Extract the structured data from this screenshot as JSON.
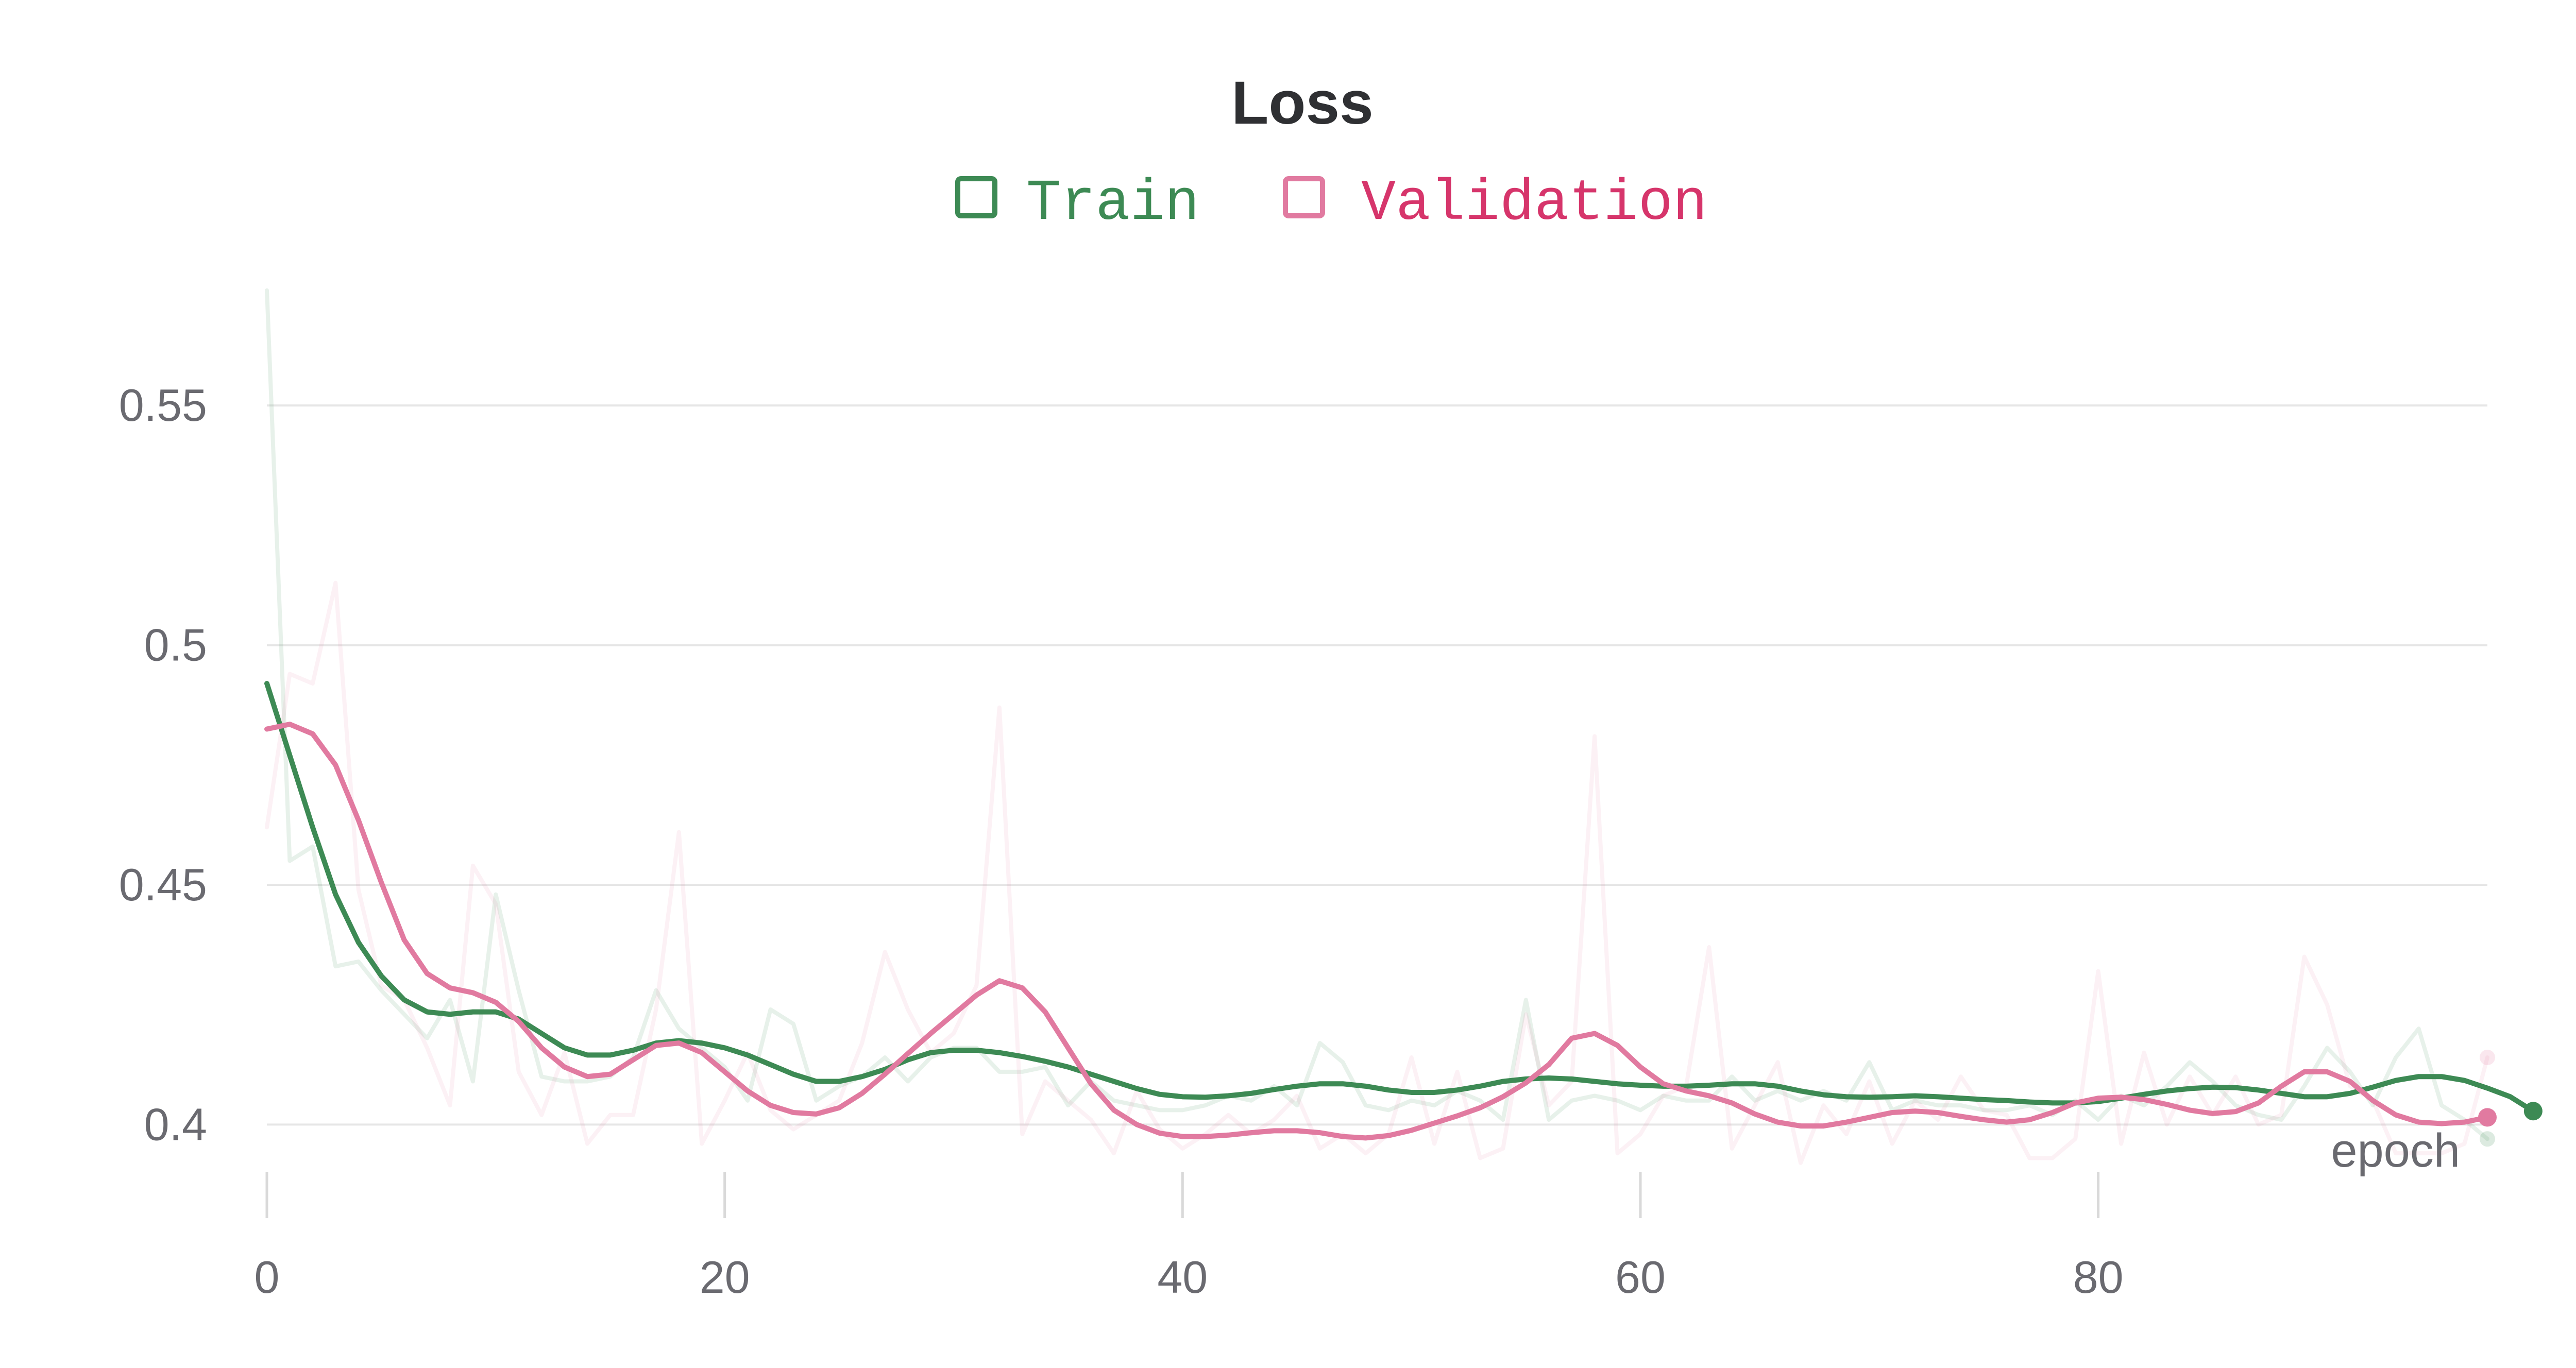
{
  "chart_data": {
    "type": "line",
    "title": "Loss",
    "xlabel": "epoch",
    "ylabel": "",
    "xlim": [
      0,
      97
    ],
    "ylim": [
      0.388,
      0.58
    ],
    "x_ticks": [
      0,
      20,
      40,
      60,
      80
    ],
    "y_ticks": [
      0.4,
      0.45,
      0.5,
      0.55
    ],
    "x_tick_labels": [
      "0",
      "20",
      "40",
      "60",
      "80"
    ],
    "y_tick_labels": [
      "0.4",
      "0.45",
      "0.5",
      "0.55"
    ],
    "grid": true,
    "legend_position": "top-center",
    "colors": {
      "train": "#3d8a54",
      "validation": "#e17aa0",
      "validation_text": "#d6356b",
      "grid": "#e6e6e6",
      "tick": "#6a6a70",
      "title": "#2f3033"
    },
    "series": [
      {
        "name": "Train",
        "key": "train",
        "raw": [
          0.574,
          0.455,
          0.458,
          0.433,
          0.434,
          0.428,
          0.423,
          0.418,
          0.426,
          0.409,
          0.448,
          0.428,
          0.41,
          0.409,
          0.409,
          0.41,
          0.414,
          0.428,
          0.42,
          0.416,
          0.412,
          0.405,
          0.424,
          0.421,
          0.405,
          0.408,
          0.41,
          0.414,
          0.409,
          0.414,
          0.416,
          0.416,
          0.411,
          0.411,
          0.412,
          0.404,
          0.409,
          0.405,
          0.404,
          0.403,
          0.403,
          0.404,
          0.406,
          0.405,
          0.408,
          0.404,
          0.417,
          0.413,
          0.404,
          0.403,
          0.405,
          0.404,
          0.407,
          0.405,
          0.401,
          0.426,
          0.401,
          0.405,
          0.406,
          0.405,
          0.403,
          0.406,
          0.405,
          0.405,
          0.41,
          0.405,
          0.407,
          0.405,
          0.407,
          0.405,
          0.413,
          0.403,
          0.405,
          0.404,
          0.404,
          0.403,
          0.403,
          0.404,
          0.402,
          0.405,
          0.401,
          0.406,
          0.404,
          0.408,
          0.413,
          0.409,
          0.404,
          0.402,
          0.401,
          0.408,
          0.416,
          0.411,
          0.404,
          0.414,
          0.42,
          0.404,
          0.401,
          0.397
        ],
        "smoothed": [
          0.492,
          0.477,
          0.462,
          0.448,
          0.438,
          0.431,
          0.426,
          0.4235,
          0.423,
          0.4235,
          0.4235,
          0.422,
          0.419,
          0.416,
          0.4145,
          0.4145,
          0.4155,
          0.417,
          0.4175,
          0.417,
          0.416,
          0.4145,
          0.4125,
          0.4105,
          0.409,
          0.409,
          0.41,
          0.4115,
          0.4135,
          0.415,
          0.4155,
          0.4155,
          0.415,
          0.4142,
          0.4132,
          0.412,
          0.4105,
          0.409,
          0.4075,
          0.4063,
          0.4058,
          0.4057,
          0.406,
          0.4065,
          0.4073,
          0.408,
          0.4085,
          0.4085,
          0.408,
          0.4072,
          0.4067,
          0.4067,
          0.4072,
          0.408,
          0.409,
          0.4095,
          0.4097,
          0.4095,
          0.409,
          0.4085,
          0.4082,
          0.408,
          0.408,
          0.4082,
          0.4085,
          0.4085,
          0.408,
          0.407,
          0.4062,
          0.4058,
          0.4057,
          0.4058,
          0.406,
          0.4058,
          0.4055,
          0.4052,
          0.405,
          0.4047,
          0.4045,
          0.4045,
          0.4048,
          0.4055,
          0.4063,
          0.407,
          0.4075,
          0.4078,
          0.4077,
          0.4072,
          0.4065,
          0.4058,
          0.4058,
          0.4065,
          0.4078,
          0.4092,
          0.41,
          0.41,
          0.4092,
          0.4076,
          0.4058,
          0.4028
        ]
      },
      {
        "name": "Validation",
        "key": "validation",
        "raw": [
          0.462,
          0.494,
          0.492,
          0.513,
          0.449,
          0.429,
          0.426,
          0.416,
          0.404,
          0.454,
          0.446,
          0.411,
          0.402,
          0.415,
          0.396,
          0.402,
          0.402,
          0.424,
          0.461,
          0.396,
          0.405,
          0.415,
          0.403,
          0.399,
          0.402,
          0.405,
          0.417,
          0.436,
          0.424,
          0.415,
          0.419,
          0.429,
          0.487,
          0.398,
          0.409,
          0.405,
          0.401,
          0.394,
          0.407,
          0.399,
          0.395,
          0.398,
          0.402,
          0.398,
          0.401,
          0.406,
          0.395,
          0.398,
          0.394,
          0.398,
          0.414,
          0.396,
          0.411,
          0.393,
          0.395,
          0.423,
          0.404,
          0.409,
          0.481,
          0.394,
          0.398,
          0.406,
          0.408,
          0.437,
          0.395,
          0.404,
          0.413,
          0.392,
          0.404,
          0.398,
          0.409,
          0.396,
          0.405,
          0.401,
          0.41,
          0.403,
          0.402,
          0.393,
          0.393,
          0.397,
          0.432,
          0.396,
          0.415,
          0.4,
          0.41,
          0.402,
          0.41,
          0.4,
          0.402,
          0.435,
          0.425,
          0.408,
          0.405,
          0.394,
          0.394,
          0.394,
          0.396,
          0.414
        ],
        "smoothed": [
          0.4825,
          0.4835,
          0.4815,
          0.475,
          0.4635,
          0.4505,
          0.4385,
          0.4315,
          0.4285,
          0.4275,
          0.4255,
          0.4215,
          0.416,
          0.412,
          0.41,
          0.4105,
          0.4135,
          0.4165,
          0.417,
          0.415,
          0.411,
          0.407,
          0.404,
          0.4025,
          0.4022,
          0.4035,
          0.4065,
          0.4105,
          0.4148,
          0.419,
          0.423,
          0.427,
          0.43,
          0.4285,
          0.4235,
          0.416,
          0.4085,
          0.403,
          0.4,
          0.3982,
          0.3975,
          0.3975,
          0.3978,
          0.3983,
          0.3987,
          0.3987,
          0.3983,
          0.3975,
          0.3972,
          0.3977,
          0.3988,
          0.4003,
          0.4018,
          0.4035,
          0.4058,
          0.4087,
          0.4125,
          0.418,
          0.419,
          0.4165,
          0.412,
          0.4085,
          0.407,
          0.406,
          0.4045,
          0.4022,
          0.4005,
          0.3997,
          0.3997,
          0.4005,
          0.4015,
          0.4025,
          0.4028,
          0.4025,
          0.4017,
          0.401,
          0.4005,
          0.401,
          0.4025,
          0.4045,
          0.4055,
          0.4057,
          0.4052,
          0.4042,
          0.403,
          0.4023,
          0.4027,
          0.4045,
          0.408,
          0.411,
          0.411,
          0.409,
          0.405,
          0.402,
          0.4005,
          0.4002,
          0.4005,
          0.4015
        ]
      }
    ]
  }
}
